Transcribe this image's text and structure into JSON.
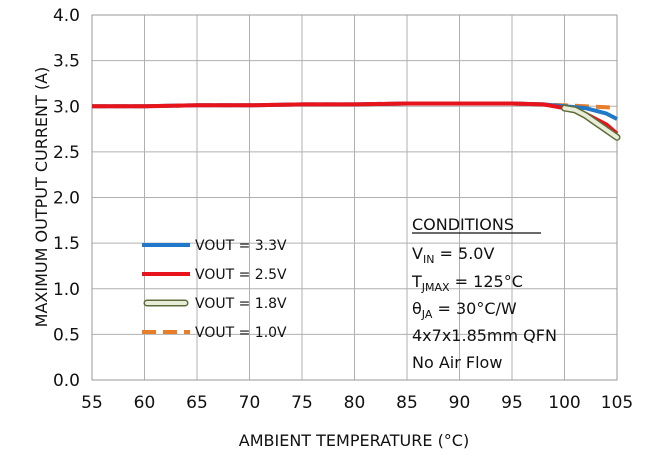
{
  "chart_data": {
    "type": "line",
    "title": "",
    "xlabel": "AMBIENT TEMPERATURE (°C)",
    "ylabel": "MAXIMUM OUTPUT  CURRENT (A)",
    "xlim": [
      55,
      105
    ],
    "ylim": [
      0,
      4.0
    ],
    "x_ticks": [
      "55",
      "60",
      "65",
      "70",
      "75",
      "80",
      "85",
      "90",
      "95",
      "100",
      "105"
    ],
    "y_ticks": [
      "0.0",
      "0.5",
      "1.0",
      "1.5",
      "2.0",
      "2.5",
      "3.0",
      "3.5",
      "4.0"
    ],
    "grid": true,
    "legend_position": "lower-left",
    "series": [
      {
        "name": "VOUT = 3.3V",
        "color": "#1f78c8",
        "style": "solid",
        "x": [
          55,
          60,
          65,
          70,
          75,
          80,
          85,
          90,
          95,
          98,
          100,
          102,
          104,
          105
        ],
        "y": [
          3.0,
          3.0,
          3.01,
          3.01,
          3.02,
          3.02,
          3.03,
          3.03,
          3.03,
          3.02,
          3.0,
          2.98,
          2.92,
          2.86
        ]
      },
      {
        "name": "VOUT = 2.5V",
        "color": "#e8141c",
        "style": "solid",
        "x": [
          55,
          60,
          65,
          70,
          75,
          80,
          85,
          90,
          95,
          98,
          100,
          102,
          104,
          105
        ],
        "y": [
          3.0,
          3.0,
          3.01,
          3.01,
          3.02,
          3.02,
          3.03,
          3.03,
          3.03,
          3.02,
          2.98,
          2.92,
          2.8,
          2.7
        ]
      },
      {
        "name": "VOUT = 1.8V",
        "color": "#9aa863",
        "style": "double",
        "x": [
          100,
          101,
          102,
          103,
          104,
          105
        ],
        "y": [
          2.98,
          2.96,
          2.9,
          2.82,
          2.74,
          2.66
        ]
      },
      {
        "name": "VOUT = 1.0V",
        "color": "#e87d2a",
        "style": "dashed",
        "x": [
          55,
          60,
          65,
          70,
          75,
          80,
          85,
          90,
          95,
          100,
          102,
          104,
          105
        ],
        "y": [
          3.0,
          3.0,
          3.01,
          3.01,
          3.02,
          3.02,
          3.03,
          3.03,
          3.03,
          3.01,
          3.0,
          2.99,
          2.98
        ]
      }
    ],
    "annotation": {
      "heading": "CONDITIONS",
      "vin_symbol": "V",
      "vin_sub": "IN",
      "vin_value": " = 5.0V",
      "tj_symbol": "T",
      "tj_sub": "JMAX",
      "tj_value": " = 125°C",
      "theta_symbol": "θ",
      "theta_sub": "JA",
      "theta_value": " = 30°C/W",
      "package": "4x7x1.85mm QFN",
      "airflow": "No Air Flow"
    }
  }
}
